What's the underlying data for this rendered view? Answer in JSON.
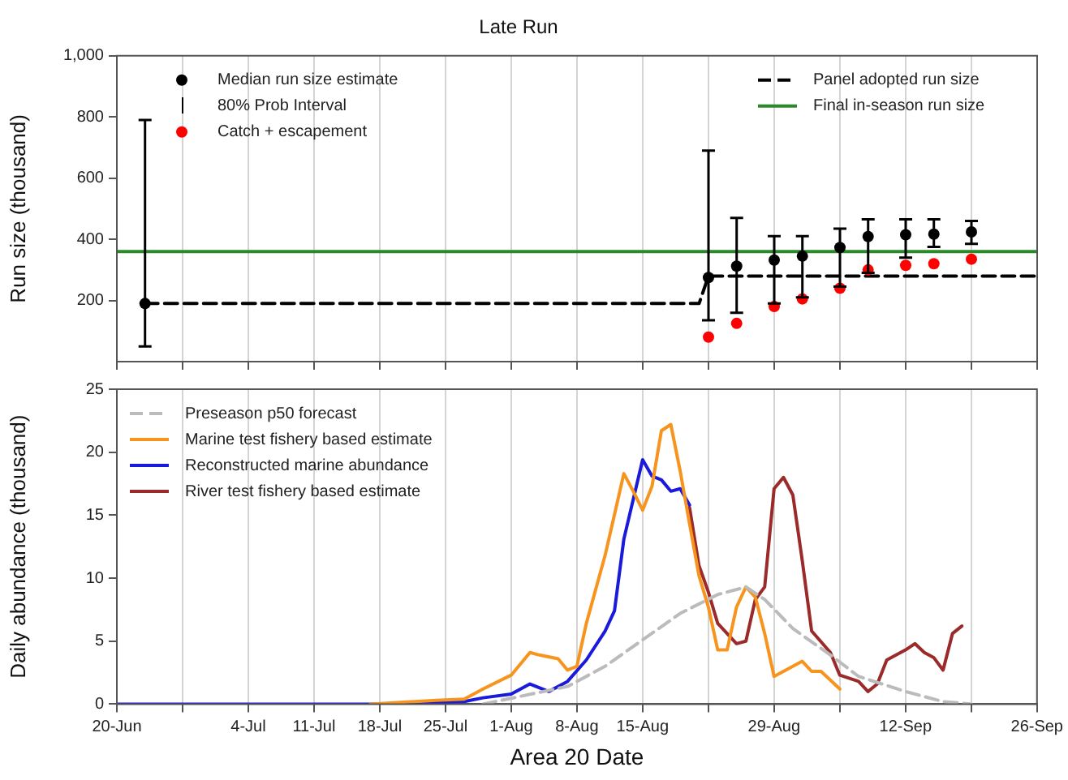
{
  "chart_data": [
    {
      "type": "scatter",
      "title": "Late Run",
      "ylabel": "Run size (thousand)",
      "xlim": [
        "--06-20",
        "--09-26"
      ],
      "xticks": [
        {
          "value": "--06-20",
          "label": null
        },
        {
          "value": "--06-27",
          "label": null
        },
        {
          "value": "--07-04",
          "label": null
        },
        {
          "value": "--07-11",
          "label": null
        },
        {
          "value": "--07-18",
          "label": null
        },
        {
          "value": "--07-25",
          "label": null
        },
        {
          "value": "--08-01",
          "label": null
        },
        {
          "value": "--08-08",
          "label": null
        },
        {
          "value": "--08-15",
          "label": null
        },
        {
          "value": "--08-22",
          "label": null
        },
        {
          "value": "--08-29",
          "label": null
        },
        {
          "value": "--09-05",
          "label": null
        },
        {
          "value": "--09-12",
          "label": null
        },
        {
          "value": "--09-19",
          "label": null
        },
        {
          "value": "--09-26",
          "label": null
        }
      ],
      "ylim": [
        0,
        1000
      ],
      "yticks": [
        200,
        400,
        600,
        800,
        {
          "value": 1000,
          "label": "1,000"
        }
      ],
      "grid": "x",
      "legend": "top",
      "tick_labels": "y",
      "annotations": [
        "80% Prob Interval"
      ],
      "x": [
        "--06-23",
        "--08-22",
        "--08-25",
        "--08-29",
        "--09-01",
        "--09-05",
        "--09-08",
        "--09-12",
        "--09-15",
        "--09-19"
      ],
      "series": [
        {
          "name": "Median run size estimate",
          "marker": "circle",
          "color": "#000000",
          "values": [
            190,
            275,
            312,
            332,
            345,
            373,
            409,
            415,
            417,
            424
          ],
          "errors": [
            [
              50,
              790
            ],
            [
              135,
              690
            ],
            [
              160,
              470
            ],
            [
              190,
              410
            ],
            [
              210,
              410
            ],
            [
              245,
              435
            ],
            [
              290,
              465
            ],
            [
              340,
              465
            ],
            [
              375,
              465
            ],
            [
              385,
              460
            ]
          ]
        },
        {
          "name": "Catch + escapement",
          "marker": "circle",
          "color": "#ff0000",
          "x": [
            "--08-22",
            "--08-25",
            "--08-29",
            "--09-01",
            "--09-05",
            "--09-08",
            "--09-12",
            "--09-15",
            "--09-19"
          ],
          "values": [
            80,
            125,
            180,
            205,
            240,
            300,
            315,
            320,
            335
          ]
        },
        {
          "name": "Panel adopted run size",
          "type": "line",
          "line_style": "dashed",
          "color": "#000000",
          "x": [
            "--06-23",
            "--08-21",
            "--08-22",
            "--09-26"
          ],
          "values": [
            190,
            190,
            280,
            280
          ]
        },
        {
          "name": "Final in-season run size",
          "type": "line",
          "color": "#2a8a2a",
          "x": [
            "--06-20",
            "--09-26"
          ],
          "values": [
            360,
            360
          ]
        }
      ]
    },
    {
      "type": "line",
      "xlabel": "Area 20 Date",
      "ylabel": "Daily abundance (thousand)",
      "xlim": [
        "--06-20",
        "--09-26"
      ],
      "xticks": [
        {
          "value": "--06-20",
          "label": "20-Jun"
        },
        {
          "value": "--06-27",
          "label": null
        },
        {
          "value": "--07-04",
          "label": "4-Jul"
        },
        {
          "value": "--07-11",
          "label": "11-Jul"
        },
        {
          "value": "--07-18",
          "label": "18-Jul"
        },
        {
          "value": "--07-25",
          "label": "25-Jul"
        },
        {
          "value": "--08-01",
          "label": "1-Aug"
        },
        {
          "value": "--08-08",
          "label": "8-Aug"
        },
        {
          "value": "--08-15",
          "label": "15-Aug"
        },
        {
          "value": "--08-22",
          "label": null
        },
        {
          "value": "--08-29",
          "label": "29-Aug"
        },
        {
          "value": "--09-05",
          "label": null
        },
        {
          "value": "--09-12",
          "label": "12-Sep"
        },
        {
          "value": "--09-19",
          "label": null
        },
        {
          "value": "--09-26",
          "label": "26-Sep"
        }
      ],
      "ylim": [
        0,
        25
      ],
      "yticks": [
        0,
        5,
        10,
        15,
        20,
        25
      ],
      "grid": "x",
      "legend": "top left",
      "series": [
        {
          "name": "Preseason p50 forecast",
          "line_style": "dashed",
          "color": "#bbbbbb",
          "x": [
            "--07-29",
            "--08-07",
            "--08-11",
            "--08-15",
            "--08-19",
            "--08-23",
            "--08-26",
            "--08-28",
            "--08-31",
            "--09-04",
            "--09-07",
            "--09-12",
            "--09-16",
            "--09-19"
          ],
          "values": [
            0,
            1.4,
            3.0,
            5.1,
            7.2,
            8.7,
            9.3,
            8.3,
            6.0,
            3.9,
            2.2,
            1.0,
            0.2,
            0
          ]
        },
        {
          "name": "Marine test fishery based estimate",
          "color": "#f7941d",
          "x": [
            "--07-17",
            "--07-24",
            "--07-27",
            "--07-29",
            "--08-01",
            "--08-03",
            "--08-04",
            "--08-06",
            "--08-07",
            "--08-08",
            "--08-09",
            "--08-11",
            "--08-13",
            "--08-14",
            "--08-15",
            "--08-16",
            "--08-17",
            "--08-18",
            "--08-19",
            "--08-20",
            "--08-21",
            "--08-22",
            "--08-23",
            "--08-24",
            "--08-25",
            "--08-26",
            "--08-27",
            "--08-28",
            "--08-29",
            "--08-30",
            "--09-01",
            "--09-02",
            "--09-03",
            "--09-05"
          ],
          "values": [
            0,
            0.3,
            0.4,
            1.2,
            2.3,
            4.1,
            3.9,
            3.6,
            2.7,
            3.0,
            6.4,
            11.8,
            18.3,
            16.9,
            15.4,
            17.3,
            21.7,
            22.2,
            18.5,
            14.3,
            10.2,
            7.7,
            4.3,
            4.3,
            7.7,
            9.3,
            8.5,
            5.6,
            2.2,
            2.6,
            3.4,
            2.6,
            2.6,
            1.2
          ]
        },
        {
          "name": "Reconstructed marine abundance",
          "color": "#1a1adb",
          "x": [
            "--06-20",
            "--07-20",
            "--07-27",
            "--07-29",
            "--08-01",
            "--08-03",
            "--08-05",
            "--08-07",
            "--08-09",
            "--08-11",
            "--08-12",
            "--08-13",
            "--08-15",
            "--08-16",
            "--08-17",
            "--08-18",
            "--08-19",
            "--08-20"
          ],
          "values": [
            0,
            0,
            0.2,
            0.5,
            0.8,
            1.6,
            1.0,
            1.8,
            3.5,
            5.8,
            7.4,
            13.1,
            19.4,
            18.1,
            17.8,
            16.9,
            17.1,
            15.8
          ]
        },
        {
          "name": "River test fishery based estimate",
          "color": "#9b2a2a",
          "x": [
            "--08-20",
            "--08-21",
            "--08-22",
            "--08-23",
            "--08-25",
            "--08-26",
            "--08-27",
            "--08-28",
            "--08-29",
            "--08-30",
            "--08-31",
            "--09-01",
            "--09-02",
            "--09-04",
            "--09-05",
            "--09-07",
            "--09-08",
            "--09-09",
            "--09-10",
            "--09-12",
            "--09-13",
            "--09-14",
            "--09-15",
            "--09-16",
            "--09-17",
            "--09-18"
          ],
          "values": [
            15.6,
            11.0,
            8.9,
            6.4,
            4.8,
            5.0,
            8.3,
            9.3,
            17.1,
            18.0,
            16.6,
            11.4,
            5.8,
            4.1,
            2.3,
            1.8,
            1.0,
            1.6,
            3.5,
            4.3,
            4.8,
            4.1,
            3.7,
            2.7,
            5.6,
            6.2
          ]
        }
      ]
    }
  ]
}
